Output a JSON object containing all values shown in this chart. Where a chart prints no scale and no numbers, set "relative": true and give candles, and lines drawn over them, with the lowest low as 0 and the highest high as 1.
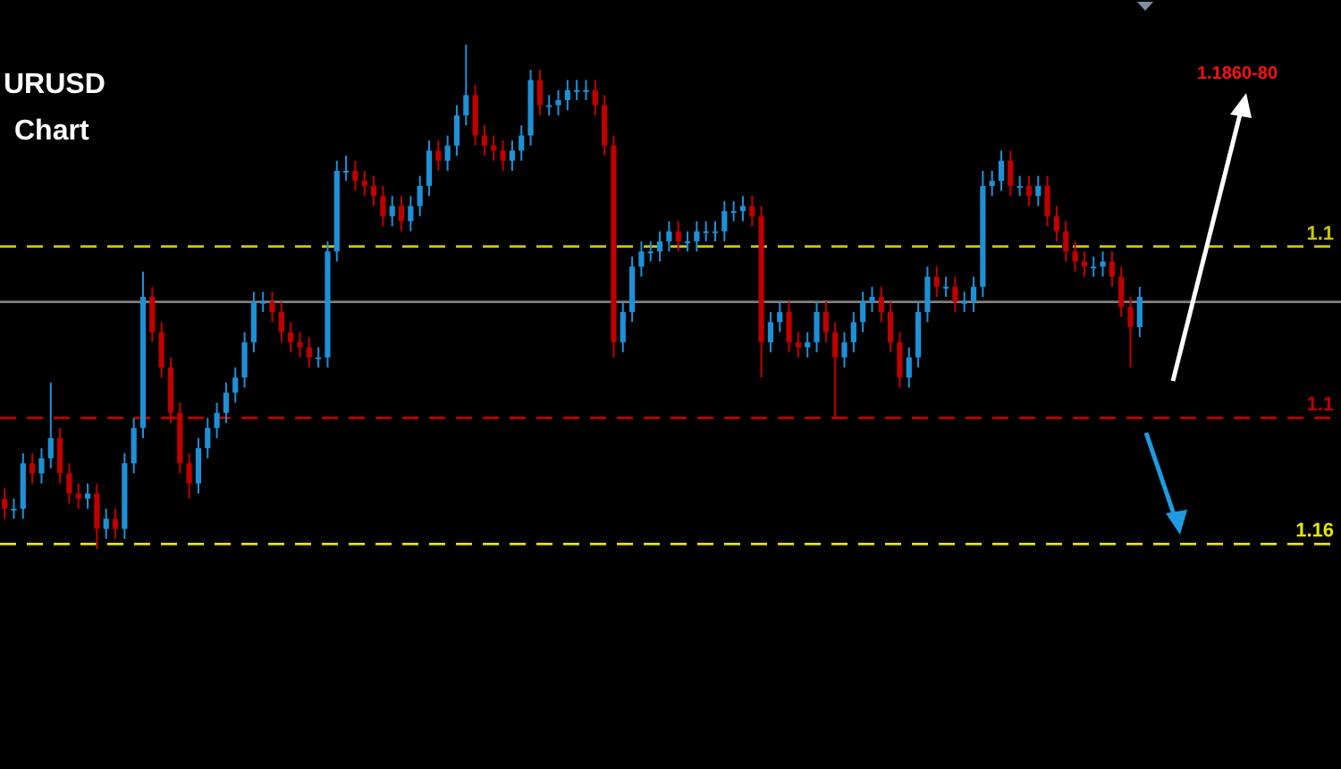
{
  "chart_data": {
    "type": "candlestick",
    "title": "URUSD",
    "subtitle": "Chart",
    "relative": true,
    "annotations": [
      "1.1860-80",
      "1.1",
      "1.1",
      "1.16"
    ],
    "categories": [
      null,
      null,
      null,
      null,
      null,
      null,
      null,
      null,
      null,
      null,
      null,
      null,
      null,
      null,
      null,
      null,
      null,
      null,
      null,
      null,
      null,
      null,
      null,
      null,
      null,
      null,
      null,
      null,
      null,
      null,
      null,
      null,
      null,
      null,
      null,
      null,
      null,
      null,
      null,
      null,
      null,
      null,
      null,
      null,
      null,
      null,
      null,
      null,
      null,
      null,
      null,
      null,
      null,
      null,
      null,
      null,
      null,
      null,
      null,
      null,
      null,
      null,
      null,
      null,
      null,
      null,
      null,
      null,
      null,
      null,
      null,
      null,
      null,
      null,
      null,
      null,
      null,
      null,
      null,
      null,
      null,
      null,
      null,
      null,
      null,
      null,
      null,
      null,
      null,
      null,
      null,
      null,
      null,
      null,
      null,
      null,
      null,
      null,
      null,
      null,
      null,
      null,
      null,
      null,
      null,
      null,
      null,
      null,
      null,
      null,
      null,
      null,
      null,
      null,
      null,
      null,
      null,
      null,
      null,
      null,
      null,
      null,
      null,
      null
    ],
    "ohlc": [
      [
        0.1,
        0.12,
        0.06,
        0.08
      ],
      [
        0.08,
        0.1,
        0.06,
        0.08
      ],
      [
        0.08,
        0.19,
        0.06,
        0.17
      ],
      [
        0.17,
        0.19,
        0.13,
        0.15
      ],
      [
        0.15,
        0.2,
        0.13,
        0.18
      ],
      [
        0.18,
        0.33,
        0.16,
        0.22
      ],
      [
        0.22,
        0.24,
        0.13,
        0.15
      ],
      [
        0.15,
        0.17,
        0.09,
        0.11
      ],
      [
        0.11,
        0.13,
        0.08,
        0.1
      ],
      [
        0.1,
        0.13,
        0.08,
        0.11
      ],
      [
        0.11,
        0.13,
        0,
        0.04
      ],
      [
        0.04,
        0.08,
        0.02,
        0.06
      ],
      [
        0.06,
        0.08,
        0.02,
        0.04
      ],
      [
        0.04,
        0.19,
        0.02,
        0.17
      ],
      [
        0.17,
        0.26,
        0.15,
        0.24
      ],
      [
        0.24,
        0.55,
        0.22,
        0.5
      ],
      [
        0.5,
        0.52,
        0.41,
        0.43
      ],
      [
        0.43,
        0.45,
        0.34,
        0.36
      ],
      [
        0.36,
        0.38,
        0.25,
        0.27
      ],
      [
        0.27,
        0.29,
        0.15,
        0.17
      ],
      [
        0.17,
        0.19,
        0.1,
        0.13
      ],
      [
        0.13,
        0.22,
        0.11,
        0.2
      ],
      [
        0.2,
        0.26,
        0.18,
        0.24
      ],
      [
        0.24,
        0.29,
        0.22,
        0.27
      ],
      [
        0.27,
        0.33,
        0.25,
        0.31
      ],
      [
        0.31,
        0.36,
        0.29,
        0.34
      ],
      [
        0.34,
        0.43,
        0.32,
        0.41
      ],
      [
        0.41,
        0.51,
        0.39,
        0.49
      ],
      [
        0.49,
        0.51,
        0.47,
        0.49
      ],
      [
        0.49,
        0.51,
        0.45,
        0.47
      ],
      [
        0.47,
        0.49,
        0.41,
        0.43
      ],
      [
        0.43,
        0.45,
        0.39,
        0.41
      ],
      [
        0.41,
        0.43,
        0.38,
        0.4
      ],
      [
        0.4,
        0.42,
        0.36,
        0.38
      ],
      [
        0.38,
        0.4,
        0.36,
        0.38
      ],
      [
        0.38,
        0.61,
        0.36,
        0.59
      ],
      [
        0.59,
        0.77,
        0.57,
        0.75
      ],
      [
        0.75,
        0.78,
        0.73,
        0.75
      ],
      [
        0.75,
        0.77,
        0.71,
        0.73
      ],
      [
        0.73,
        0.75,
        0.7,
        0.72
      ],
      [
        0.72,
        0.74,
        0.68,
        0.7
      ],
      [
        0.7,
        0.72,
        0.64,
        0.66
      ],
      [
        0.66,
        0.7,
        0.64,
        0.68
      ],
      [
        0.68,
        0.7,
        0.63,
        0.65
      ],
      [
        0.65,
        0.7,
        0.63,
        0.68
      ],
      [
        0.68,
        0.74,
        0.66,
        0.72
      ],
      [
        0.72,
        0.81,
        0.7,
        0.79
      ],
      [
        0.79,
        0.81,
        0.75,
        0.77
      ],
      [
        0.77,
        0.82,
        0.75,
        0.8
      ],
      [
        0.8,
        0.88,
        0.78,
        0.86
      ],
      [
        0.86,
        1,
        0.84,
        0.9
      ],
      [
        0.9,
        0.92,
        0.8,
        0.82
      ],
      [
        0.82,
        0.84,
        0.78,
        0.8
      ],
      [
        0.8,
        0.82,
        0.77,
        0.79
      ],
      [
        0.79,
        0.81,
        0.75,
        0.77
      ],
      [
        0.77,
        0.81,
        0.75,
        0.79
      ],
      [
        0.79,
        0.84,
        0.77,
        0.82
      ],
      [
        0.82,
        0.95,
        0.8,
        0.93
      ],
      [
        0.93,
        0.95,
        0.86,
        0.88
      ],
      [
        0.88,
        0.9,
        0.86,
        0.88
      ],
      [
        0.88,
        0.91,
        0.86,
        0.89
      ],
      [
        0.89,
        0.93,
        0.87,
        0.91
      ],
      [
        0.91,
        0.93,
        0.89,
        0.91
      ],
      [
        0.91,
        0.93,
        0.89,
        0.91
      ],
      [
        0.91,
        0.93,
        0.86,
        0.88
      ],
      [
        0.88,
        0.9,
        0.78,
        0.8
      ],
      [
        0.8,
        0.82,
        0.38,
        0.41
      ],
      [
        0.41,
        0.49,
        0.39,
        0.47
      ],
      [
        0.47,
        0.58,
        0.45,
        0.56
      ],
      [
        0.56,
        0.61,
        0.54,
        0.59
      ],
      [
        0.59,
        0.61,
        0.57,
        0.59
      ],
      [
        0.59,
        0.63,
        0.57,
        0.61
      ],
      [
        0.61,
        0.65,
        0.59,
        0.63
      ],
      [
        0.63,
        0.65,
        0.59,
        0.61
      ],
      [
        0.61,
        0.63,
        0.59,
        0.61
      ],
      [
        0.61,
        0.65,
        0.59,
        0.63
      ],
      [
        0.63,
        0.65,
        0.61,
        0.63
      ],
      [
        0.63,
        0.65,
        0.61,
        0.63
      ],
      [
        0.63,
        0.69,
        0.61,
        0.67
      ],
      [
        0.67,
        0.69,
        0.65,
        0.67
      ],
      [
        0.67,
        0.7,
        0.65,
        0.68
      ],
      [
        0.68,
        0.7,
        0.64,
        0.66
      ],
      [
        0.66,
        0.68,
        0.34,
        0.41
      ],
      [
        0.41,
        0.47,
        0.39,
        0.45
      ],
      [
        0.45,
        0.49,
        0.43,
        0.47
      ],
      [
        0.47,
        0.49,
        0.39,
        0.41
      ],
      [
        0.41,
        0.43,
        0.38,
        0.4
      ],
      [
        0.4,
        0.43,
        0.38,
        0.41
      ],
      [
        0.41,
        0.49,
        0.39,
        0.47
      ],
      [
        0.47,
        0.49,
        0.41,
        0.43
      ],
      [
        0.43,
        0.45,
        0.26,
        0.38
      ],
      [
        0.38,
        0.43,
        0.36,
        0.41
      ],
      [
        0.41,
        0.47,
        0.39,
        0.45
      ],
      [
        0.45,
        0.51,
        0.43,
        0.49
      ],
      [
        0.49,
        0.52,
        0.47,
        0.5
      ],
      [
        0.5,
        0.52,
        0.45,
        0.47
      ],
      [
        0.47,
        0.49,
        0.39,
        0.41
      ],
      [
        0.41,
        0.43,
        0.32,
        0.34
      ],
      [
        0.34,
        0.4,
        0.32,
        0.38
      ],
      [
        0.38,
        0.49,
        0.36,
        0.47
      ],
      [
        0.47,
        0.56,
        0.45,
        0.54
      ],
      [
        0.54,
        0.56,
        0.5,
        0.52
      ],
      [
        0.52,
        0.54,
        0.5,
        0.52
      ],
      [
        0.52,
        0.54,
        0.47,
        0.49
      ],
      [
        0.49,
        0.51,
        0.47,
        0.49
      ],
      [
        0.49,
        0.54,
        0.47,
        0.52
      ],
      [
        0.52,
        0.75,
        0.5,
        0.72
      ],
      [
        0.72,
        0.75,
        0.7,
        0.73
      ],
      [
        0.73,
        0.79,
        0.71,
        0.77
      ],
      [
        0.77,
        0.79,
        0.7,
        0.72
      ],
      [
        0.72,
        0.74,
        0.7,
        0.72
      ],
      [
        0.72,
        0.74,
        0.68,
        0.7
      ],
      [
        0.7,
        0.74,
        0.68,
        0.72
      ],
      [
        0.72,
        0.74,
        0.64,
        0.66
      ],
      [
        0.66,
        0.68,
        0.61,
        0.63
      ],
      [
        0.63,
        0.65,
        0.57,
        0.59
      ],
      [
        0.59,
        0.61,
        0.55,
        0.57
      ],
      [
        0.57,
        0.59,
        0.54,
        0.56
      ],
      [
        0.56,
        0.58,
        0.54,
        0.56
      ],
      [
        0.56,
        0.59,
        0.54,
        0.57
      ],
      [
        0.57,
        0.59,
        0.52,
        0.54
      ],
      [
        0.54,
        0.56,
        0.46,
        0.48
      ],
      [
        0.48,
        0.5,
        0.36,
        0.44
      ],
      [
        0.44,
        0.52,
        0.42,
        0.5
      ]
    ],
    "ref_lines": [
      {
        "axis": "y",
        "value": 0.6,
        "color": "#c8c800",
        "line_style": "dashed"
      },
      {
        "axis": "y",
        "value": 0.49,
        "color": "#808080",
        "line_style": "solid"
      },
      {
        "axis": "y",
        "value": 0.26,
        "color": "#c00000",
        "line_style": "dashed"
      },
      {
        "axis": "y",
        "value": 0.01,
        "color": "#e6e600",
        "line_style": "dashed"
      }
    ]
  }
}
